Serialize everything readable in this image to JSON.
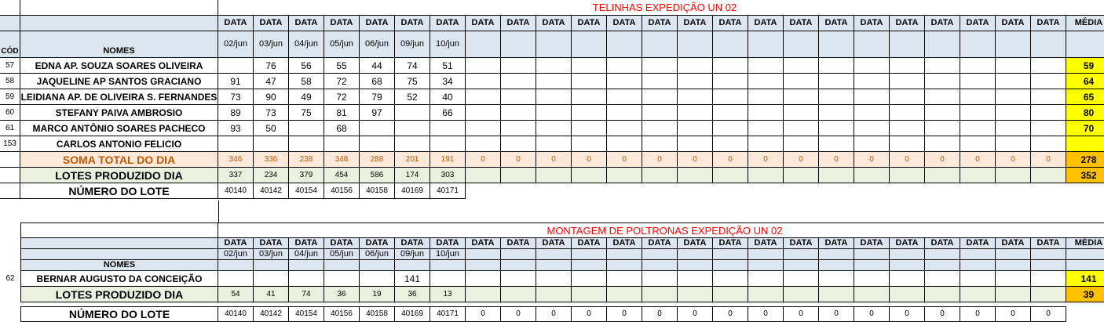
{
  "section1": {
    "title": "TELINHAS EXPEDIÇÃO UN 02",
    "col_code": "CÓD",
    "col_names": "NOMES",
    "data_label": "DATA",
    "media_label": "MÉDIA",
    "dates": [
      "02/jun",
      "03/jun",
      "04/jun",
      "05/jun",
      "06/jun",
      "09/jun",
      "10/jun"
    ],
    "rows": [
      {
        "code": "57",
        "name": "EDNA AP. SOUZA SOARES OLIVEIRA",
        "values": [
          "",
          "76",
          "56",
          "55",
          "44",
          "74",
          "51"
        ],
        "media": "59"
      },
      {
        "code": "58",
        "name": "JAQUELINE AP SANTOS GRACIANO",
        "values": [
          "91",
          "47",
          "58",
          "72",
          "68",
          "75",
          "34"
        ],
        "media": "64"
      },
      {
        "code": "59",
        "name": "LEIDIANA AP. DE OLIVEIRA S. FERNANDES",
        "values": [
          "73",
          "90",
          "49",
          "72",
          "79",
          "52",
          "40"
        ],
        "media": "65"
      },
      {
        "code": "60",
        "name": "STEFANY PAIVA AMBROSIO",
        "values": [
          "89",
          "73",
          "75",
          "81",
          "97",
          "",
          "66"
        ],
        "media": "80"
      },
      {
        "code": "61",
        "name": "MARCO ANTÔNIO SOARES PACHECO",
        "values": [
          "93",
          "50",
          "",
          "68",
          "",
          "",
          ""
        ],
        "media": "70"
      },
      {
        "code": "153",
        "name": "CARLOS ANTONIO FELICIO",
        "values": [
          "",
          "",
          "",
          "",
          "",
          "",
          ""
        ],
        "media": ""
      }
    ],
    "soma": {
      "label": "SOMA TOTAL DO DIA",
      "values": [
        "346",
        "336",
        "238",
        "348",
        "288",
        "201",
        "191",
        "0",
        "0",
        "0",
        "0",
        "0",
        "0",
        "0",
        "0",
        "0",
        "0",
        "0",
        "0",
        "0",
        "0",
        "0",
        "0",
        "0"
      ],
      "media": "278"
    },
    "lotes": {
      "label": "LOTES PRODUZIDO DIA",
      "values": [
        "337",
        "234",
        "379",
        "454",
        "586",
        "174",
        "303"
      ],
      "media": "352"
    },
    "numero": {
      "label": "NÚMERO DO LOTE",
      "values": [
        "40140",
        "40142",
        "40154",
        "40156",
        "40158",
        "40169",
        "40171"
      ]
    }
  },
  "section2": {
    "title": "MONTAGEM DE POLTRONAS EXPEDIÇÃO UN 02",
    "col_names": "NOMES",
    "data_label": "DATA",
    "media_label": "MÉDIA",
    "dates": [
      "02/jun",
      "03/jun",
      "04/jun",
      "05/jun",
      "06/jun",
      "09/jun",
      "10/jun"
    ],
    "rows": [
      {
        "code": "62",
        "name": "BERNAR AUGUSTO DA CONCEIÇÃO",
        "values": [
          "",
          "",
          "",
          "",
          "",
          "141",
          ""
        ],
        "media": "141"
      }
    ],
    "lotes": {
      "label": "LOTES PRODUZIDO DIA",
      "values": [
        "54",
        "41",
        "74",
        "36",
        "19",
        "36",
        "13"
      ],
      "media": "39"
    },
    "numero": {
      "label": "NÚMERO DO LOTE",
      "values": [
        "40140",
        "40142",
        "40154",
        "40156",
        "40158",
        "40169",
        "40171",
        "0",
        "0",
        "0",
        "0",
        "0",
        "0",
        "0",
        "0",
        "0",
        "0",
        "0",
        "0",
        "0",
        "0",
        "0",
        "0",
        "0"
      ]
    }
  }
}
